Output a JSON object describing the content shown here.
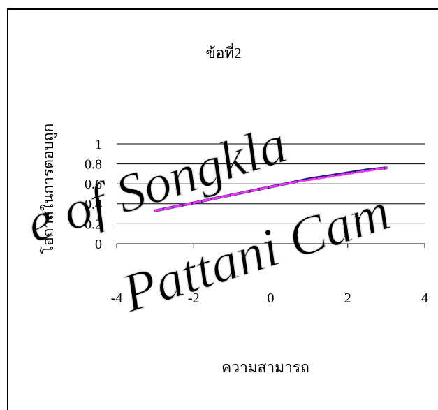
{
  "chart_data": {
    "type": "line",
    "title": "ข้อที่2",
    "xlabel": "ความสามารถ",
    "ylabel": "โอกาสในการตอบถูก",
    "xlim": [
      -4,
      4
    ],
    "ylim": [
      0,
      1
    ],
    "xticks": [
      "-4",
      "-2",
      "0",
      "2",
      "4"
    ],
    "yticks": [
      "0",
      "0.2",
      "0.4",
      "0.6",
      "0.8",
      "1"
    ],
    "grid": true,
    "series": [
      {
        "color": "#1f1f7a",
        "x": [
          -3.0,
          -2.5,
          -2.0,
          -1.5,
          -1.0,
          -0.5,
          0.0,
          0.5,
          1.0,
          1.5,
          2.0,
          2.5,
          3.0
        ],
        "y": [
          0.33,
          0.37,
          0.41,
          0.45,
          0.49,
          0.53,
          0.57,
          0.61,
          0.65,
          0.68,
          0.71,
          0.74,
          0.76
        ]
      },
      {
        "color": "#ff33ff",
        "x": [
          -3.0,
          -2.5,
          -2.0,
          -1.5,
          -1.0,
          -0.5,
          0.0,
          0.5,
          1.0,
          1.5,
          2.0,
          2.5,
          3.0
        ],
        "y": [
          0.33,
          0.37,
          0.41,
          0.45,
          0.49,
          0.53,
          0.57,
          0.61,
          0.64,
          0.67,
          0.7,
          0.73,
          0.76
        ]
      }
    ]
  },
  "watermark": {
    "line1": "e of Songkla",
    "line2": "Pattani Cam"
  }
}
